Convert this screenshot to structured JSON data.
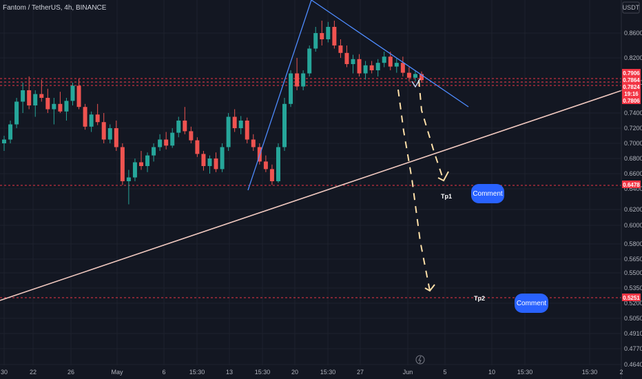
{
  "header": {
    "title": "Fantom / TetherUS, 4h, BINANCE",
    "currency": "USDT"
  },
  "chart_data": {
    "type": "candlestick",
    "symbol": "Fantom / TetherUS",
    "interval": "4h",
    "exchange": "BINANCE",
    "currency": "USDT",
    "y_ticks": [
      0.86,
      0.82,
      0.78,
      0.74,
      0.72,
      0.7,
      0.68,
      0.66,
      0.64,
      0.62,
      0.6,
      0.58,
      0.565,
      0.55,
      0.535,
      0.52,
      0.505,
      0.491,
      0.477,
      0.464
    ],
    "y_tick_labels": [
      "0.8600",
      "0.8200",
      "0.7800",
      "0.7400",
      "0.7200",
      "0.7000",
      "0.6800",
      "0.6600",
      "0.6400",
      "0.6200",
      "0.6000",
      "0.5800",
      "0.5650",
      "0.5500",
      "0.5350",
      "0.5200",
      "0.5050",
      "0.4910",
      "0.4770",
      "0.4640"
    ],
    "x_tick_labels": [
      "30",
      "22",
      "26",
      "May",
      "6",
      "15:30",
      "13",
      "15:30",
      "20",
      "15:30",
      "27",
      "Jun",
      "5",
      "10",
      "15:30",
      "15:30",
      "2"
    ],
    "price_badges": [
      {
        "label": "0.7906",
        "value": 0.7906,
        "color": "#f23645"
      },
      {
        "label": "0.7864",
        "value": 0.7864,
        "color": "#f23645"
      },
      {
        "label": "0.7824",
        "value": 0.7824,
        "color": "#f23645"
      },
      {
        "label": "19:16",
        "value": 0.784,
        "color": "#f23645"
      },
      {
        "label": "0.7806",
        "value": 0.7806,
        "color": "#f23645"
      },
      {
        "label": "0.6478",
        "value": 0.6478,
        "color": "#f23645"
      },
      {
        "label": "0.5251",
        "value": 0.5251,
        "color": "#f23645"
      }
    ],
    "horizontal_levels": [
      0.7906,
      0.7864,
      0.7824,
      0.6478,
      0.5251
    ],
    "targets": [
      {
        "label": "Tp1",
        "value": 0.6478
      },
      {
        "label": "Tp2",
        "value": 0.5251
      }
    ],
    "comments": [
      "Comment",
      "Comment"
    ],
    "candles": [
      [
        0.7,
        0.71,
        0.69,
        0.705
      ],
      [
        0.705,
        0.73,
        0.7,
        0.725
      ],
      [
        0.725,
        0.76,
        0.72,
        0.755
      ],
      [
        0.755,
        0.78,
        0.74,
        0.77
      ],
      [
        0.77,
        0.79,
        0.745,
        0.75
      ],
      [
        0.75,
        0.77,
        0.735,
        0.765
      ],
      [
        0.765,
        0.785,
        0.755,
        0.76
      ],
      [
        0.76,
        0.772,
        0.74,
        0.745
      ],
      [
        0.745,
        0.76,
        0.725,
        0.752
      ],
      [
        0.752,
        0.768,
        0.74,
        0.742
      ],
      [
        0.742,
        0.76,
        0.73,
        0.756
      ],
      [
        0.756,
        0.78,
        0.75,
        0.776
      ],
      [
        0.776,
        0.786,
        0.745,
        0.748
      ],
      [
        0.748,
        0.752,
        0.718,
        0.722
      ],
      [
        0.722,
        0.742,
        0.715,
        0.738
      ],
      [
        0.738,
        0.752,
        0.724,
        0.728
      ],
      [
        0.728,
        0.74,
        0.7,
        0.705
      ],
      [
        0.705,
        0.725,
        0.7,
        0.72
      ],
      [
        0.72,
        0.73,
        0.69,
        0.695
      ],
      [
        0.695,
        0.7,
        0.645,
        0.65
      ],
      [
        0.65,
        0.665,
        0.625,
        0.655
      ],
      [
        0.655,
        0.68,
        0.65,
        0.675
      ],
      [
        0.675,
        0.69,
        0.665,
        0.67
      ],
      [
        0.67,
        0.688,
        0.662,
        0.684
      ],
      [
        0.684,
        0.7,
        0.676,
        0.695
      ],
      [
        0.695,
        0.712,
        0.69,
        0.705
      ],
      [
        0.705,
        0.715,
        0.692,
        0.697
      ],
      [
        0.697,
        0.72,
        0.694,
        0.714
      ],
      [
        0.714,
        0.735,
        0.708,
        0.73
      ],
      [
        0.73,
        0.748,
        0.712,
        0.716
      ],
      [
        0.716,
        0.722,
        0.7,
        0.704
      ],
      [
        0.704,
        0.708,
        0.682,
        0.686
      ],
      [
        0.686,
        0.69,
        0.664,
        0.67
      ],
      [
        0.67,
        0.684,
        0.66,
        0.68
      ],
      [
        0.68,
        0.688,
        0.662,
        0.666
      ],
      [
        0.666,
        0.7,
        0.662,
        0.695
      ],
      [
        0.695,
        0.74,
        0.69,
        0.735
      ],
      [
        0.735,
        0.745,
        0.715,
        0.72
      ],
      [
        0.72,
        0.736,
        0.712,
        0.73
      ],
      [
        0.73,
        0.734,
        0.7,
        0.705
      ],
      [
        0.705,
        0.712,
        0.69,
        0.695
      ],
      [
        0.695,
        0.7,
        0.672,
        0.676
      ],
      [
        0.676,
        0.684,
        0.662,
        0.666
      ],
      [
        0.666,
        0.672,
        0.645,
        0.65
      ],
      [
        0.65,
        0.7,
        0.648,
        0.695
      ],
      [
        0.695,
        0.76,
        0.69,
        0.752
      ],
      [
        0.752,
        0.8,
        0.748,
        0.795
      ],
      [
        0.795,
        0.82,
        0.77,
        0.775
      ],
      [
        0.775,
        0.8,
        0.77,
        0.795
      ],
      [
        0.795,
        0.84,
        0.79,
        0.835
      ],
      [
        0.835,
        0.87,
        0.83,
        0.86
      ],
      [
        0.86,
        0.88,
        0.84,
        0.85
      ],
      [
        0.85,
        0.878,
        0.845,
        0.87
      ],
      [
        0.87,
        0.88,
        0.835,
        0.84
      ],
      [
        0.84,
        0.85,
        0.82,
        0.828
      ],
      [
        0.828,
        0.84,
        0.805,
        0.81
      ],
      [
        0.81,
        0.825,
        0.795,
        0.818
      ],
      [
        0.818,
        0.826,
        0.79,
        0.795
      ],
      [
        0.795,
        0.815,
        0.785,
        0.808
      ],
      [
        0.808,
        0.815,
        0.795,
        0.8
      ],
      [
        0.8,
        0.818,
        0.79,
        0.812
      ],
      [
        0.812,
        0.83,
        0.805,
        0.822
      ],
      [
        0.822,
        0.83,
        0.8,
        0.806
      ],
      [
        0.806,
        0.82,
        0.796,
        0.812
      ],
      [
        0.812,
        0.822,
        0.79,
        0.796
      ],
      [
        0.796,
        0.805,
        0.782,
        0.788
      ],
      [
        0.788,
        0.8,
        0.782,
        0.794
      ],
      [
        0.794,
        0.798,
        0.78,
        0.784
      ]
    ]
  }
}
